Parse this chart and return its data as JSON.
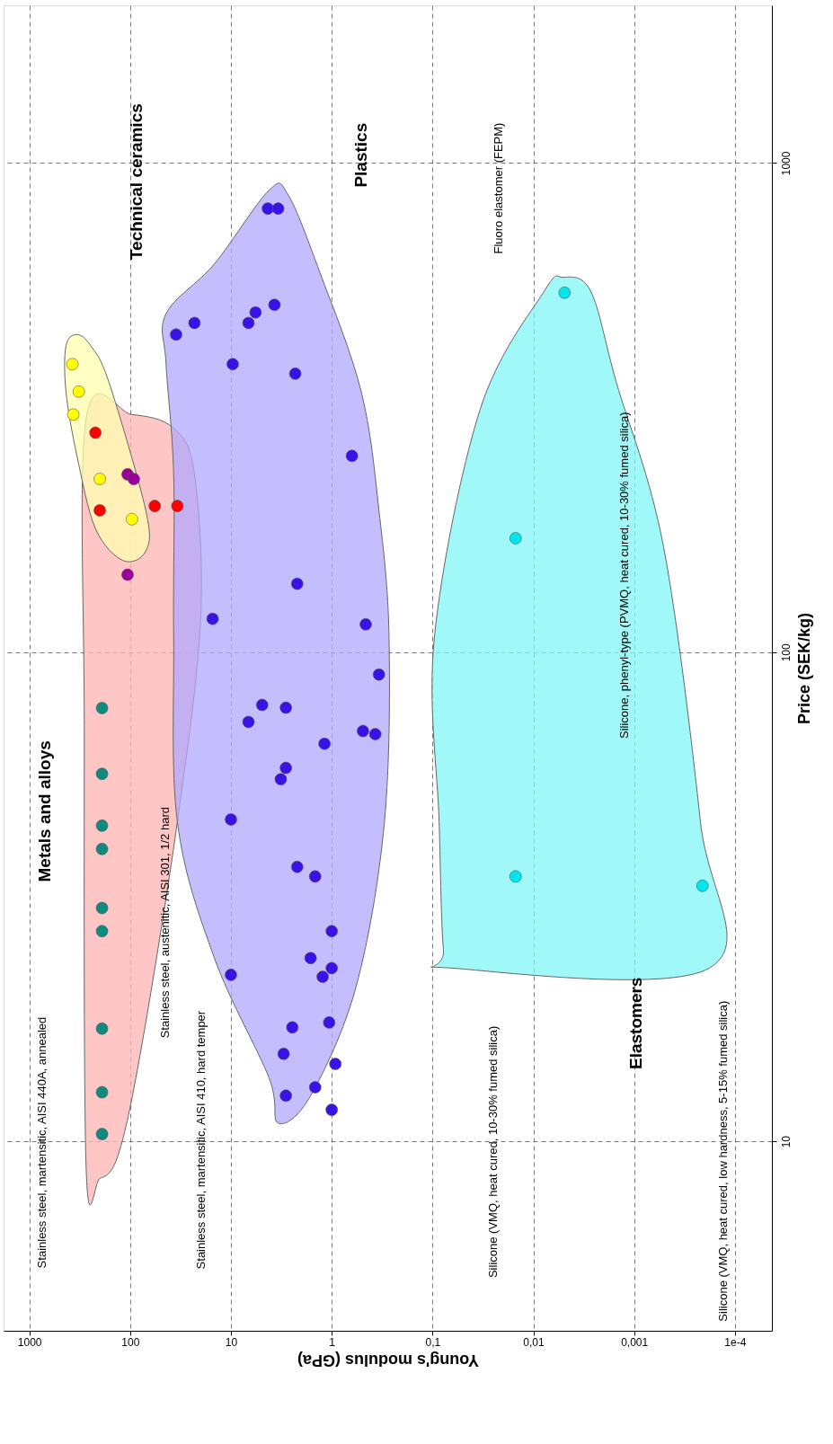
{
  "chart_data": {
    "type": "scatter",
    "xlabel": "Young's modulus (GPa)",
    "ylabel": "Price (SEK/kg)",
    "log": "xy",
    "grid": true,
    "xlim": [
      1800,
      4.3e-05
    ],
    "xticks": [
      1000,
      100,
      10,
      1,
      {
        "value": 0.1,
        "label": "0,1"
      },
      {
        "value": 0.01,
        "label": "0,01"
      },
      {
        "value": 0.001,
        "label": "0,001"
      },
      {
        "value": 0.0001,
        "label": "1e-4"
      }
    ],
    "ylim": [
      4.1,
      2100
    ],
    "yticks": [
      10,
      100,
      1000
    ],
    "series": [
      {
        "type": "area",
        "color": "#ffb3b3",
        "x": [
          273,
          200,
          131,
          78,
          34,
          20,
          23,
          37,
          96,
          273,
          285
        ],
        "values": [
          8.8,
          8.4,
          9.4,
          15.4,
          45,
          116,
          231,
          287,
          306,
          300,
          69
        ]
      },
      {
        "type": "area",
        "color": "#b0a8ff",
        "x": [
          44,
          14.6,
          4.2,
          2.7,
          1.31,
          0.51,
          0.34,
          0.27,
          0.3,
          0.57,
          1.62,
          3.4,
          4.2,
          14.6,
          34,
          37,
          37,
          44
        ],
        "values": [
          492,
          622,
          879,
          860,
          597,
          341,
          195,
          107,
          45,
          20.8,
          12.4,
          10.9,
          13.5,
          23.7,
          45,
          107,
          231,
          388
        ]
      },
      {
        "type": "area",
        "color": "#ffffb0",
        "x": [
          433,
          337,
          246,
          162,
          70,
          70,
          118,
          221,
          337,
          433
        ],
        "values": [
          423,
          446,
          423,
          356,
          195,
          161,
          154,
          179,
          252,
          341
        ]
      },
      {
        "type": "area",
        "color": "#80f5f5",
        "x": [
          0.0051,
          0.0078,
          0.034,
          0.096,
          0.086,
          0.078,
          0.063,
          0.00018,
          0.00022,
          0.00051,
          0.0015,
          0.0027
        ],
        "values": [
          584,
          547,
          312,
          107,
          45,
          24.7,
          22.6,
          22.6,
          45,
          164,
          356,
          547
        ]
      },
      {
        "color": "#0e8a7f",
        "x": [
          190,
          190,
          190,
          190,
          190,
          190,
          190,
          190,
          190
        ],
        "values": [
          10.35,
          12.6,
          17,
          26.9,
          30,
          39.6,
          44.2,
          56.4,
          76.9
        ]
      },
      {
        "color": "#ffff00",
        "x": [
          374,
          323,
          366,
          200,
          96
        ],
        "values": [
          388,
          341,
          306,
          226,
          187
        ]
      },
      {
        "color": "#ff0000",
        "x": [
          221,
          200,
          57,
          34
        ],
        "values": [
          281,
          195,
          199,
          199
        ]
      },
      {
        "color": "#990099",
        "x": [
          106,
          92,
          106
        ],
        "values": [
          231,
          226,
          144
        ]
      },
      {
        "color": "#3a12e8",
        "x": [
          35,
          23,
          4.3,
          3.4,
          3.7,
          5.7,
          6.7,
          9.6,
          2.3,
          0.63,
          2.2,
          15.2,
          0.46,
          0.34,
          4.9,
          2.85,
          6.7,
          1.18,
          0.49,
          0.37,
          2.85,
          3.2,
          10,
          2.2,
          1.46,
          1.0,
          1.0,
          1.62,
          1.23,
          10,
          2.46,
          3.0,
          2.85,
          1.46,
          0.92,
          1.0,
          1.06
        ],
        "values": [
          446,
          471,
          807,
          807,
          513,
          495,
          471,
          388,
          371,
          252,
          138,
          117,
          114,
          90,
          78,
          77,
          72,
          65,
          69,
          68,
          58,
          55,
          45.5,
          36.4,
          34.8,
          26.9,
          22.6,
          23.7,
          21.7,
          21.9,
          17.1,
          15.1,
          12.4,
          12.9,
          14.4,
          11.6,
          17.5
        ]
      },
      {
        "color": "#00e5ee",
        "x": [
          0.0049,
          0.015,
          0.015,
          0.00021
        ],
        "values": [
          543,
          171,
          34.8,
          33.3
        ]
      }
    ],
    "annotations": [
      "Metals and alloys",
      "Technical ceramics",
      "Plastics",
      "Elastomers",
      "Stainless steel, martensitic, AISI 440A, annealed",
      "Stainless steel, martensitic, AISI 410, hard temper",
      "Stainless steel, austenitic, AISI 301, 1/2 hard",
      "Fluoro elastomer (FEPM)",
      "Silicone, phenyl-type (PVMQ, heat cured, 10-30% fumed silica)",
      "Silicone (VMQ, heat cured, 10-30% fumed silica)",
      "Silicone (VMQ, heat cured, low hardness, 5-15% fumed silica)"
    ]
  }
}
